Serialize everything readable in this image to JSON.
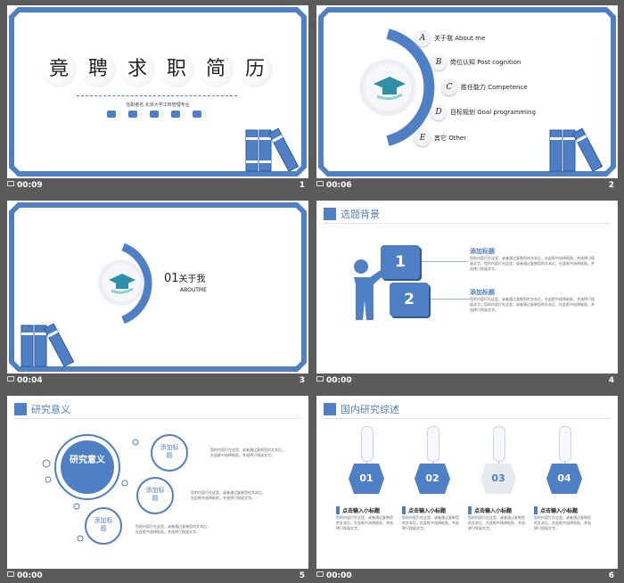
{
  "colors": {
    "accent": "#4f7fc4",
    "bg": "#5b5b5b"
  },
  "slides": [
    {
      "num": "1",
      "duration": "00:09",
      "title_chars": [
        "竟",
        "聘",
        "求",
        "职",
        "简",
        "历"
      ],
      "subtitle": "任职者名 北京大学工商管理专业"
    },
    {
      "num": "2",
      "duration": "00:06",
      "items": [
        {
          "letter": "A",
          "text": "关于我 About me"
        },
        {
          "letter": "B",
          "text": "岗位认知 Post cognition"
        },
        {
          "letter": "C",
          "text": "胜任能力 Competence"
        },
        {
          "letter": "D",
          "text": "目标规划 Goal programming"
        },
        {
          "letter": "E",
          "text": "其它 Other"
        }
      ]
    },
    {
      "num": "3",
      "duration": "00:04",
      "section_num": "01",
      "section_title": "关于我",
      "section_en": "ABOUTME"
    },
    {
      "num": "4",
      "duration": "00:00",
      "header": "选题背景",
      "step1": "1",
      "step2": "2",
      "blocks": [
        {
          "title": "添加标题",
          "body": "您的内容打在这里，或者通过复制您的文本后，在此框中选择粘贴，并选择只保留文字。您的内容打在这里，或者通过复制您的文本后，在此框中选择粘贴，并选择只保留文字。"
        },
        {
          "title": "添加标题",
          "body": "您的内容打在这里，或者通过复制您的文本后，在此框中选择粘贴，并选择只保留文字。您的内容打在这里，或者通过复制您的文本后，在此框中选择粘贴，并选择只保留文字。"
        }
      ]
    },
    {
      "num": "5",
      "duration": "00:00",
      "header": "研究意义",
      "main_circle": "研究意义",
      "circles": [
        {
          "label": "添加标题"
        },
        {
          "label": "添加标题"
        },
        {
          "label": "添加标题"
        }
      ],
      "body": "您的内容打在这里，或者通过复制您的文本后，在此框中选择粘贴，并选择只保留文字。"
    },
    {
      "num": "6",
      "duration": "00:00",
      "header": "国内研究综述",
      "tags": [
        {
          "num": "01"
        },
        {
          "num": "02"
        },
        {
          "num": "03"
        },
        {
          "num": "04"
        }
      ],
      "tag_title": "点击输入小标题",
      "tag_body": "您的内容打在这里，或者通过复制您的文本后，在此框中选择粘贴，并选择只保留文字。"
    }
  ]
}
